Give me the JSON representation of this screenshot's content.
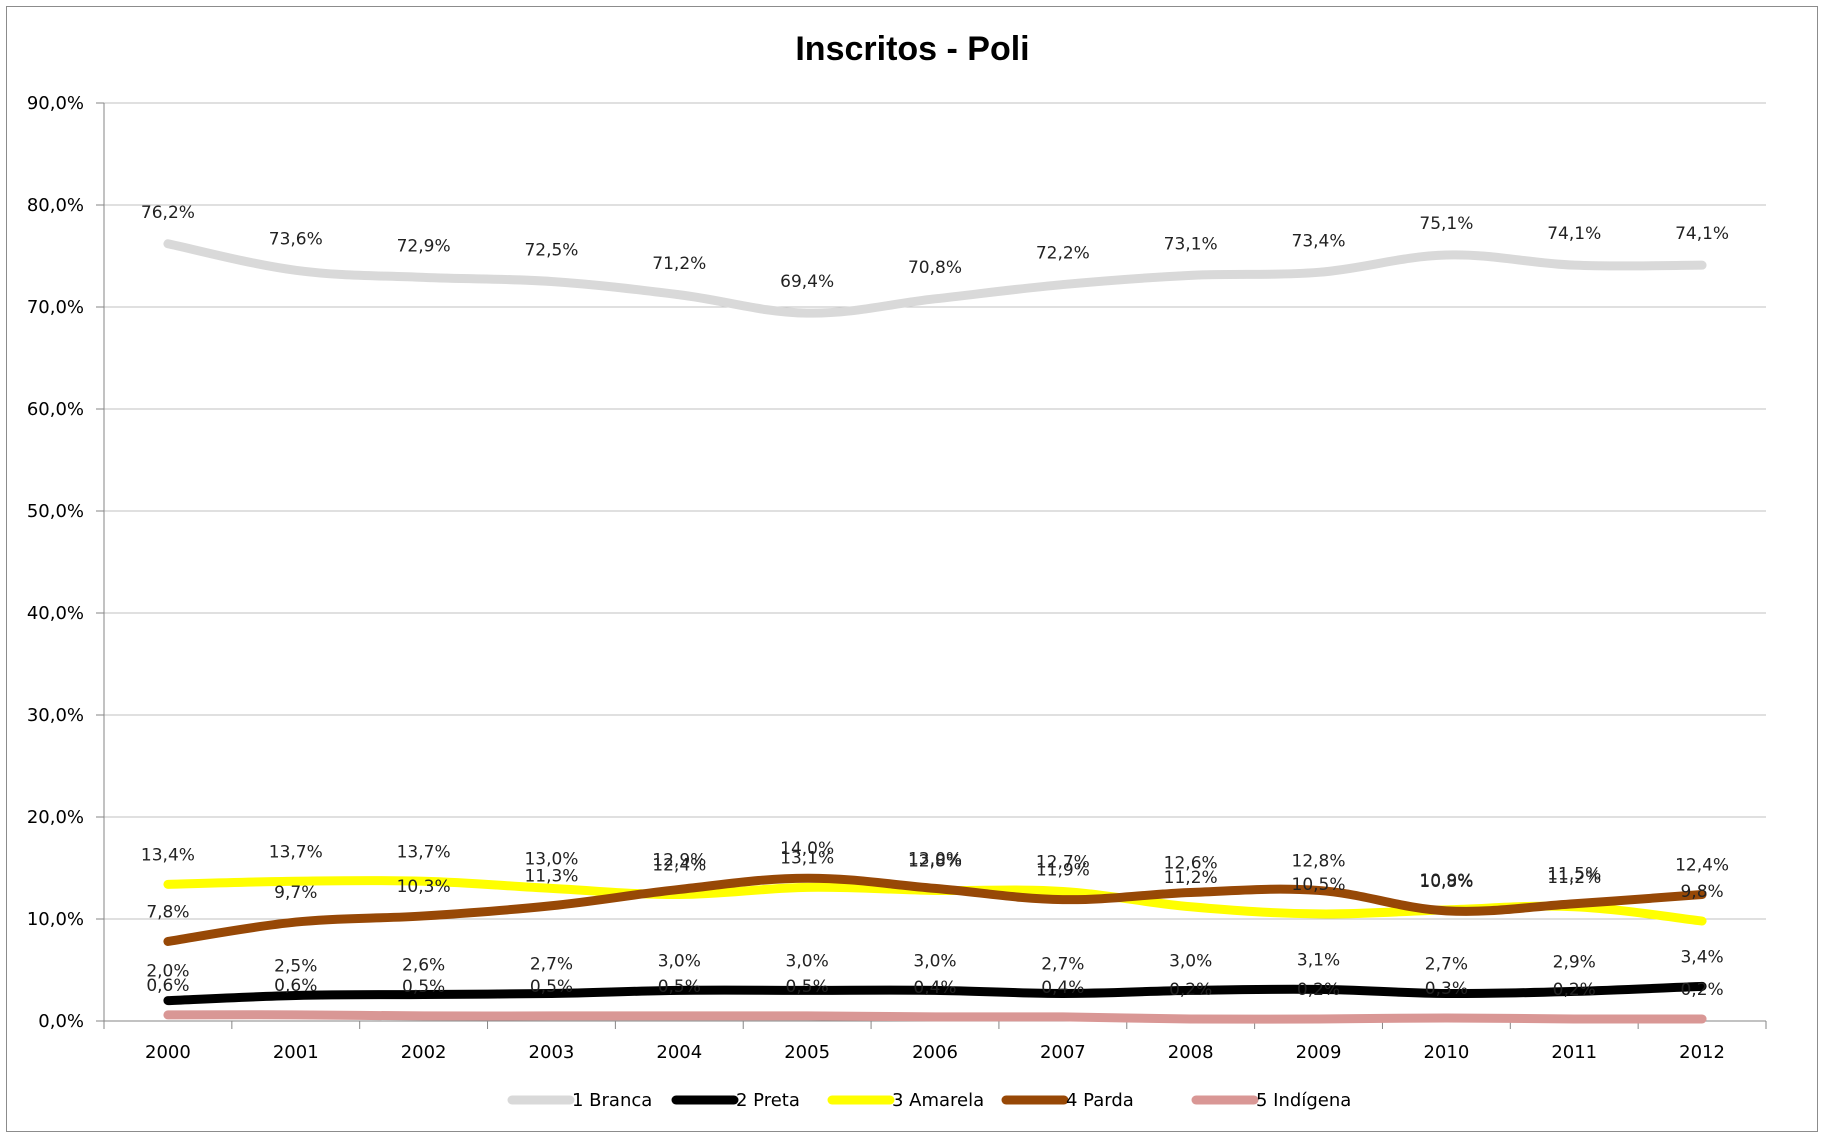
{
  "chart_data": {
    "type": "line",
    "title": "Inscritos - Poli",
    "xlabel": "",
    "ylabel": "",
    "x": [
      "2000",
      "2001",
      "2002",
      "2003",
      "2004",
      "2005",
      "2006",
      "2007",
      "2008",
      "2009",
      "2010",
      "2011",
      "2012"
    ],
    "y_ticks": [
      "0,0%",
      "10,0%",
      "20,0%",
      "30,0%",
      "40,0%",
      "50,0%",
      "60,0%",
      "70,0%",
      "80,0%",
      "90,0%"
    ],
    "ylim": [
      0,
      90
    ],
    "grid": true,
    "legend_position": "bottom",
    "series": [
      {
        "name": "1 Branca",
        "color": "#d9d9d9",
        "values": [
          76.2,
          73.6,
          72.9,
          72.5,
          71.2,
          69.4,
          70.8,
          72.2,
          73.1,
          73.4,
          75.1,
          74.1,
          74.1
        ],
        "labels": [
          "76,2%",
          "73,6%",
          "72,9%",
          "72,5%",
          "71,2%",
          "69,4%",
          "70,8%",
          "72,2%",
          "73,1%",
          "73,4%",
          "75,1%",
          "74,1%",
          "74,1%"
        ]
      },
      {
        "name": "2 Preta",
        "color": "#000000",
        "values": [
          2.0,
          2.5,
          2.6,
          2.7,
          3.0,
          3.0,
          3.0,
          2.7,
          3.0,
          3.1,
          2.7,
          2.9,
          3.4
        ],
        "labels": [
          "2,0%",
          "2,5%",
          "2,6%",
          "2,7%",
          "3,0%",
          "3,0%",
          "3,0%",
          "2,7%",
          "3,0%",
          "3,1%",
          "2,7%",
          "2,9%",
          "3,4%"
        ]
      },
      {
        "name": "3 Amarela",
        "color": "#ffff00",
        "values": [
          13.4,
          13.7,
          13.7,
          13.0,
          12.4,
          13.1,
          12.8,
          12.7,
          11.2,
          10.5,
          10.9,
          11.2,
          9.8
        ],
        "labels": [
          "13,4%",
          "13,7%",
          "13,7%",
          "13,0%",
          "12,4%",
          "13,1%",
          "12,8%",
          "12,7%",
          "11,2%",
          "10,5%",
          "10,9%",
          "11,2%",
          "9,8%"
        ]
      },
      {
        "name": "4 Parda",
        "color": "#974806",
        "values": [
          7.8,
          9.7,
          10.3,
          11.3,
          12.9,
          14.0,
          13.0,
          11.9,
          12.6,
          12.8,
          10.8,
          11.5,
          12.4
        ],
        "labels": [
          "7,8%",
          "9,7%",
          "10,3%",
          "11,3%",
          "12,9%",
          "14,0%",
          "13,0%",
          "11,9%",
          "12,6%",
          "12,8%",
          "10,8%",
          "11,5%",
          "12,4%"
        ]
      },
      {
        "name": "5 Indígena",
        "color": "#d99795",
        "values": [
          0.6,
          0.6,
          0.5,
          0.5,
          0.5,
          0.5,
          0.4,
          0.4,
          0.2,
          0.2,
          0.3,
          0.2,
          0.2
        ],
        "labels": [
          "0,6%",
          "0,6%",
          "0,5%",
          "0,5%",
          "0,5%",
          "0,5%",
          "0,4%",
          "0,4%",
          "0,2%",
          "0,2%",
          "0,3%",
          "0,2%",
          "0,2%"
        ]
      }
    ]
  }
}
